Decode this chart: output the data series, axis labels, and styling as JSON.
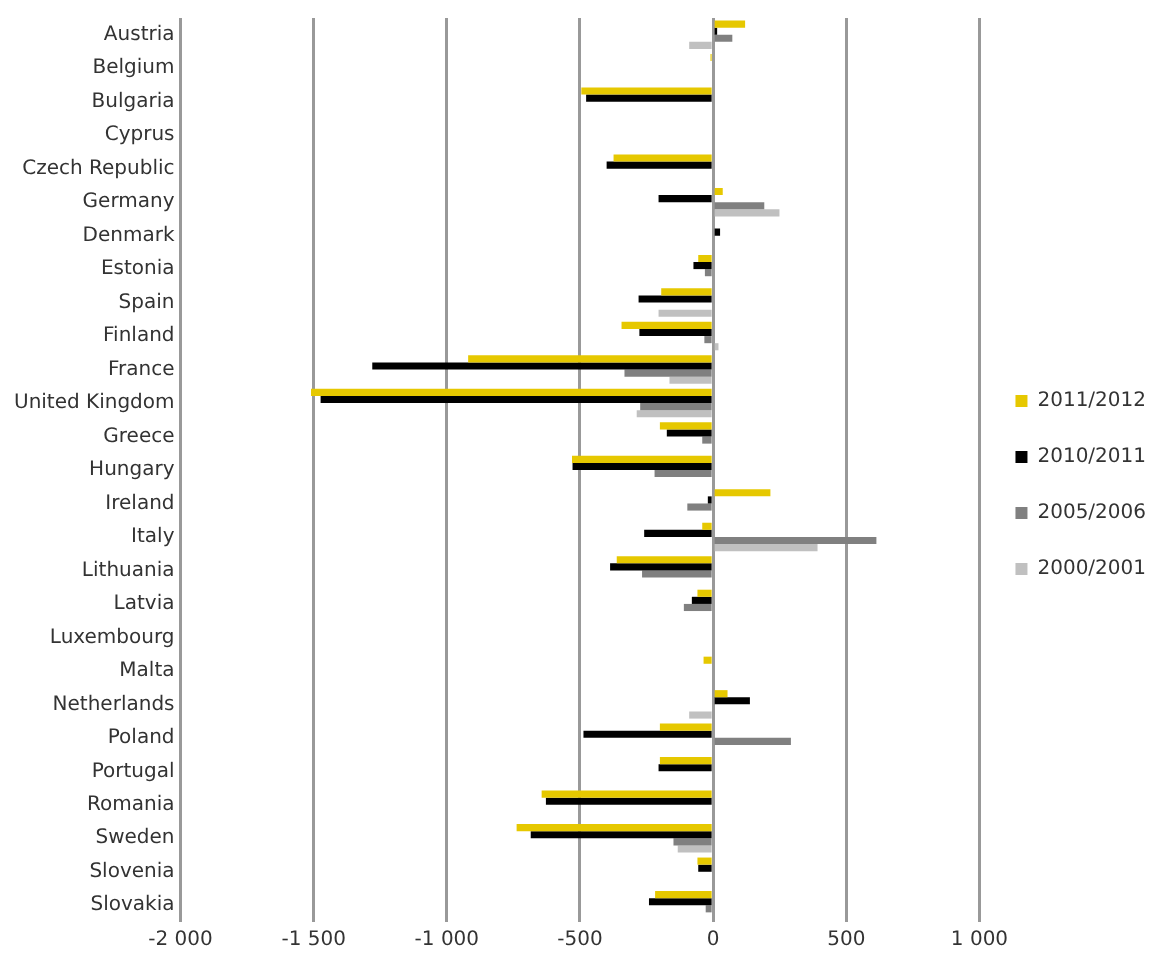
{
  "chart_data": {
    "type": "bar",
    "orientation": "horizontal",
    "categories": [
      "Austria",
      "Belgium",
      "Bulgaria",
      "Cyprus",
      "Czech Republic",
      "Germany",
      "Denmark",
      "Estonia",
      "Spain",
      "Finland",
      "France",
      "United Kingdom",
      "Greece",
      "Hungary",
      "Ireland",
      "Italy",
      "Lithuania",
      "Latvia",
      "Luxembourg",
      "Malta",
      "Netherlands",
      "Poland",
      "Portugal",
      "Romania",
      "Sweden",
      "Slovenia",
      "Slovakia"
    ],
    "series": [
      {
        "name": "2011/2012",
        "color": "#e6c800",
        "values": [
          120,
          -10,
          -495,
          0,
          -374,
          36,
          0,
          -56,
          -195,
          -344,
          -920,
          -1510,
          -200,
          -530,
          215,
          -41,
          -362,
          -59,
          0,
          -36,
          54,
          -200,
          -200,
          -644,
          -738,
          -59,
          -218
        ]
      },
      {
        "name": "2010/2011",
        "color": "#000000",
        "values": [
          15,
          0,
          -477,
          0,
          -400,
          -205,
          26,
          -74,
          -280,
          -277,
          -1280,
          -1474,
          -174,
          -528,
          -20,
          -259,
          -387,
          -80,
          0,
          null,
          138,
          -487,
          -205,
          -628,
          -685,
          -56,
          -241
        ]
      },
      {
        "name": "2005/2006",
        "color": "#808080",
        "values": [
          72,
          0,
          0,
          0,
          0,
          192,
          0,
          -31,
          0,
          -33,
          -333,
          -274,
          -41,
          -220,
          -97,
          613,
          -267,
          -110,
          0,
          0,
          0,
          292,
          0,
          0,
          -149,
          0,
          -28
        ]
      },
      {
        "name": "2000/2001",
        "color": "#c0c0c0",
        "values": [
          -90,
          null,
          0,
          0,
          null,
          249,
          0,
          0,
          -205,
          20,
          -164,
          -287,
          null,
          0,
          0,
          392,
          0,
          0,
          0,
          0,
          -90,
          0,
          0,
          0,
          -133,
          0,
          0
        ]
      }
    ],
    "xlim": [
      -2000,
      1000
    ],
    "xticks": [
      {
        "value": -2000,
        "label": "-2 000"
      },
      {
        "value": -1500,
        "label": "-1 500"
      },
      {
        "value": -1000,
        "label": "-1 000"
      },
      -500,
      0,
      500,
      {
        "value": 1000,
        "label": "1 000"
      }
    ],
    "grid": "x",
    "legend": "right"
  }
}
